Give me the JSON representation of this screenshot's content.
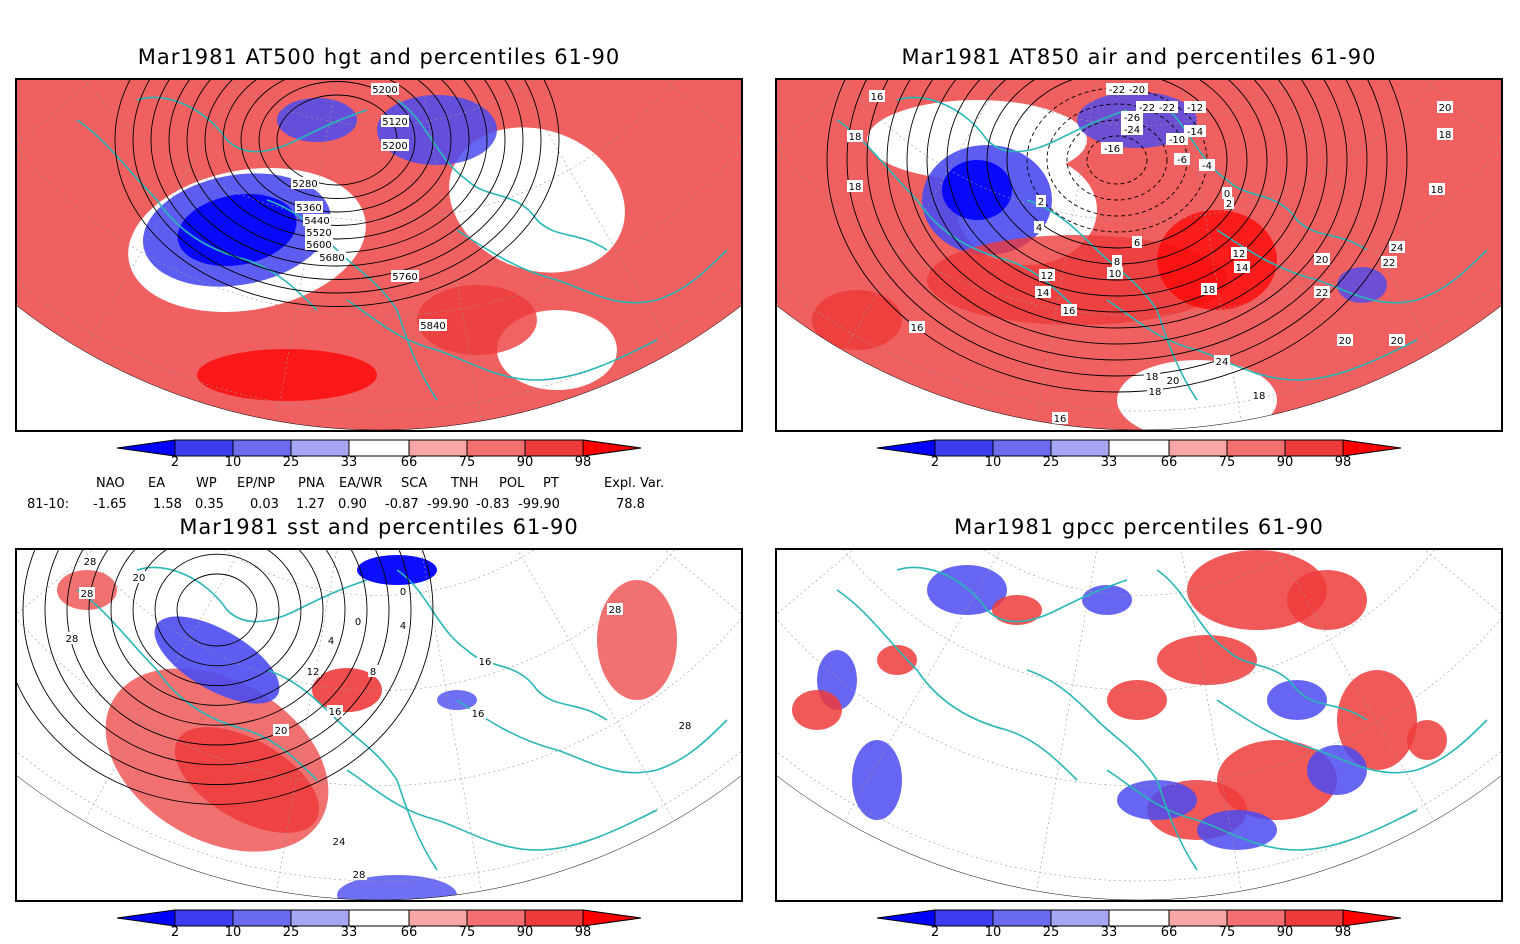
{
  "panels": [
    {
      "title": "Mar1981 AT500 hgt and percentiles 61-90",
      "contour_labels": [
        "5200",
        "5120",
        "5200",
        "5280",
        "5360",
        "5440",
        "5520",
        "5600",
        "5680",
        "5760",
        "5840"
      ]
    },
    {
      "title": "Mar1981 AT850 air and percentiles 61-90",
      "contour_labels": [
        "-22",
        "-20",
        "-22",
        "-22",
        "-26",
        "-24",
        "-12",
        "-14",
        "-16",
        "-10",
        "-6",
        "-4",
        "0",
        "2",
        "4",
        "2",
        "6",
        "8",
        "10",
        "12",
        "14",
        "12",
        "14",
        "16",
        "16",
        "18",
        "20",
        "22",
        "24",
        "20",
        "18",
        "18",
        "24",
        "22",
        "20",
        "18",
        "16",
        "16",
        "18",
        "18",
        "18",
        "20",
        "18",
        "20"
      ]
    },
    {
      "title": "Mar1981 sst and percentiles 61-90",
      "contour_labels": [
        "28",
        "20",
        "28",
        "28",
        "0",
        "4",
        "0",
        "4",
        "8",
        "12",
        "16",
        "20",
        "24",
        "28",
        "16",
        "16",
        "28",
        "28"
      ]
    },
    {
      "title": "Mar1981 gpcc percentiles 61-90",
      "contour_labels": []
    }
  ],
  "colorbar": {
    "ticks": [
      "2",
      "10",
      "25",
      "33",
      "66",
      "75",
      "90",
      "98"
    ],
    "colors": [
      "#0000ff",
      "#3c3cf0",
      "#6b6bf0",
      "#a6a6f5",
      "#ffffff",
      "#f8a6a6",
      "#f47070",
      "#ee3b3b",
      "#ff0000"
    ]
  },
  "teleconnection": {
    "headers": [
      "NAO",
      "EA",
      "WP",
      "EP/NP",
      "PNA",
      "EA/WR",
      "SCA",
      "TNH",
      "POL",
      "PT",
      "Expl. Var."
    ],
    "row_label": "81-10:",
    "values": [
      "-1.65",
      "1.58",
      "0.35",
      "0.03",
      "1.27",
      "0.90",
      "-0.87",
      "-99.90",
      "-0.83",
      "-99.90",
      "78.8"
    ]
  },
  "colors": {
    "coast": "#2ab7b7",
    "warm": "#f06060",
    "cold": "#4b4bf0",
    "contour": "#000000"
  }
}
